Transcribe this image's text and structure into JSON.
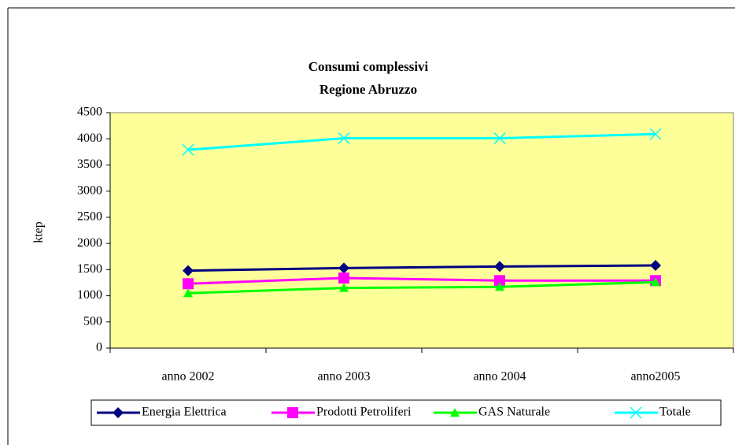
{
  "chart_data": {
    "type": "line",
    "title": [
      "Consumi complessivi",
      "Regione Abruzzo"
    ],
    "ylabel": "ktep",
    "categories": [
      "anno 2002",
      "anno 2003",
      "anno 2004",
      "anno2005"
    ],
    "series": [
      {
        "name": "Energia Elettrica",
        "color": "#000080",
        "marker": "diamond",
        "values": [
          1480,
          1530,
          1560,
          1580
        ]
      },
      {
        "name": "Prodotti Petroliferi",
        "color": "#ff00ff",
        "marker": "square",
        "values": [
          1230,
          1340,
          1290,
          1290
        ]
      },
      {
        "name": "GAS Naturale",
        "color": "#00ff00",
        "marker": "triangle",
        "values": [
          1050,
          1150,
          1170,
          1260
        ]
      },
      {
        "name": "Totale",
        "color": "#00ffff",
        "marker": "x",
        "values": [
          3790,
          4010,
          4010,
          4090
        ]
      }
    ],
    "ylim": [
      0,
      4500
    ],
    "yticks": [
      0,
      500,
      1000,
      1500,
      2000,
      2500,
      3000,
      3500,
      4000,
      4500
    ],
    "plot_background": "#ffff99",
    "legend": "bottom"
  }
}
